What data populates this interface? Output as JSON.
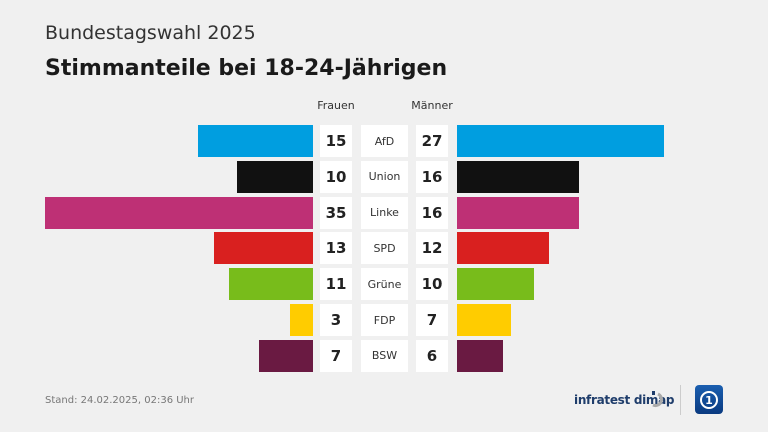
{
  "header": {
    "supertitle": "Bundestagswahl 2025",
    "title": "Stimmanteile bei 18-24-Jährigen"
  },
  "chart_data": {
    "type": "bar",
    "title": "Stimmanteile bei 18-24-Jährigen",
    "categories": [
      "AfD",
      "Union",
      "Linke",
      "SPD",
      "Grüne",
      "FDP",
      "BSW"
    ],
    "series": [
      {
        "name": "Frauen",
        "values": [
          15,
          10,
          35,
          13,
          11,
          3,
          7
        ]
      },
      {
        "name": "Männer",
        "values": [
          27,
          16,
          16,
          12,
          10,
          7,
          6
        ]
      }
    ],
    "colors": [
      "#009ee0",
      "#111111",
      "#be3075",
      "#d9201f",
      "#78bc1b",
      "#ffcc00",
      "#6a1a42"
    ],
    "unit": "%"
  },
  "footer": {
    "stand": "Stand:  24.02.2025, 02:36 Uhr",
    "brand": "infratest dimap"
  }
}
